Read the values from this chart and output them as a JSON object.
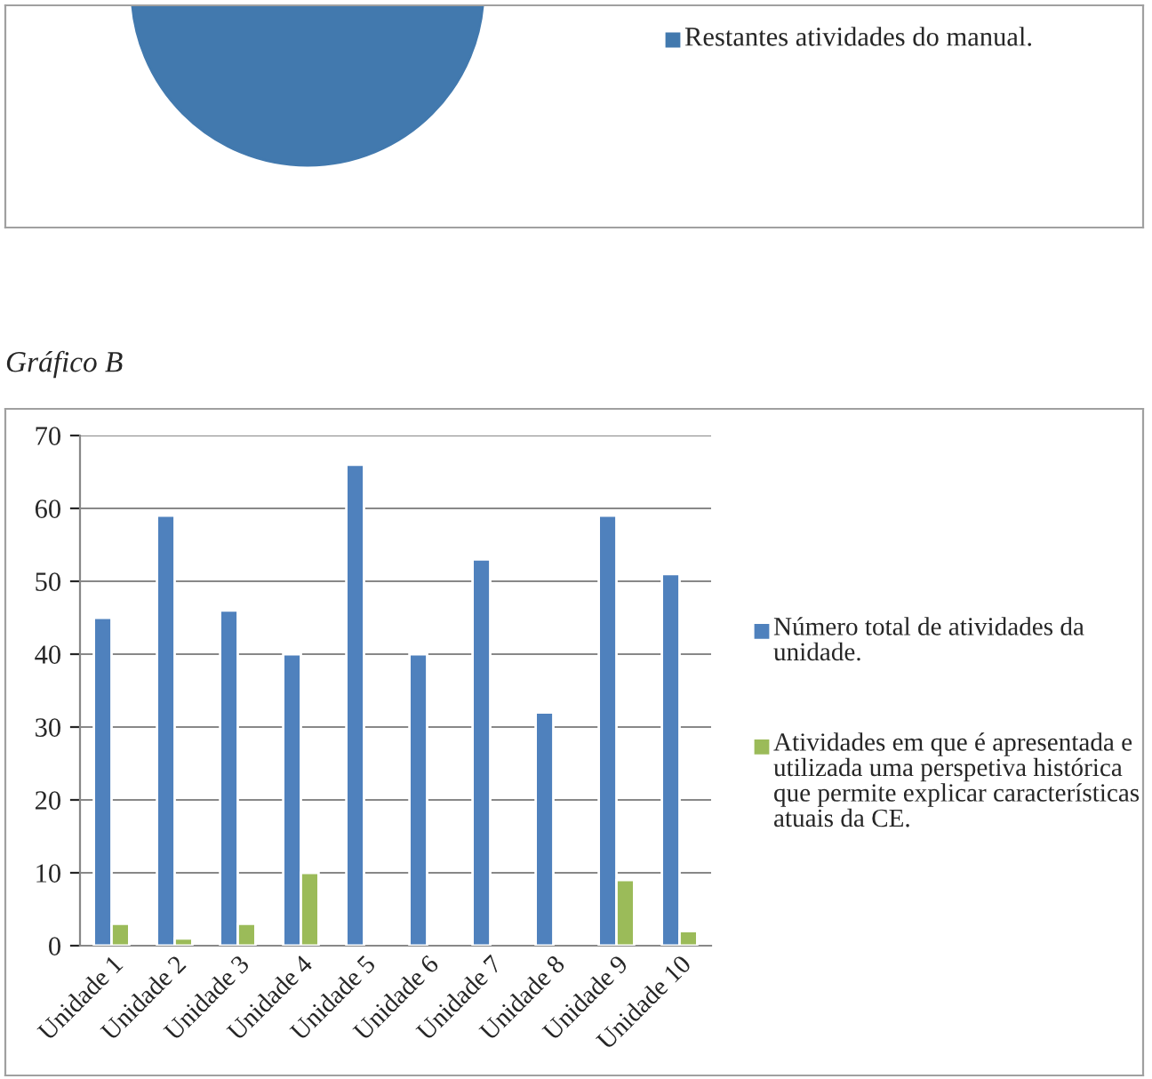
{
  "chart_data": [
    {
      "type": "other",
      "annotations": [
        "Restantes atividades do manual."
      ]
    },
    {
      "type": "bar",
      "title": "Gráfico B",
      "categories": [
        "Unidade 1",
        "Unidade 2",
        "Unidade 3",
        "Unidade 4",
        "Unidade 5",
        "Unidade 6",
        "Unidade 7",
        "Unidade 8",
        "Unidade 9",
        "Unidade 10"
      ],
      "series": [
        {
          "name": "Número total de atividades da unidade.",
          "color": "#4f81bd",
          "values": [
            45,
            59,
            46,
            40,
            66,
            40,
            53,
            32,
            59,
            51
          ]
        },
        {
          "name": "Atividades em que é apresentada e utilizada uma perspetiva histórica que permite explicar características atuais da CE.",
          "color": "#9bbb59",
          "values": [
            3,
            1,
            3,
            10,
            null,
            null,
            null,
            null,
            9,
            2
          ]
        }
      ],
      "ylim": [
        0,
        70
      ],
      "yticks": [
        0,
        10,
        20,
        30,
        40,
        50,
        60,
        70
      ],
      "grid": "y",
      "legend": "right"
    }
  ]
}
